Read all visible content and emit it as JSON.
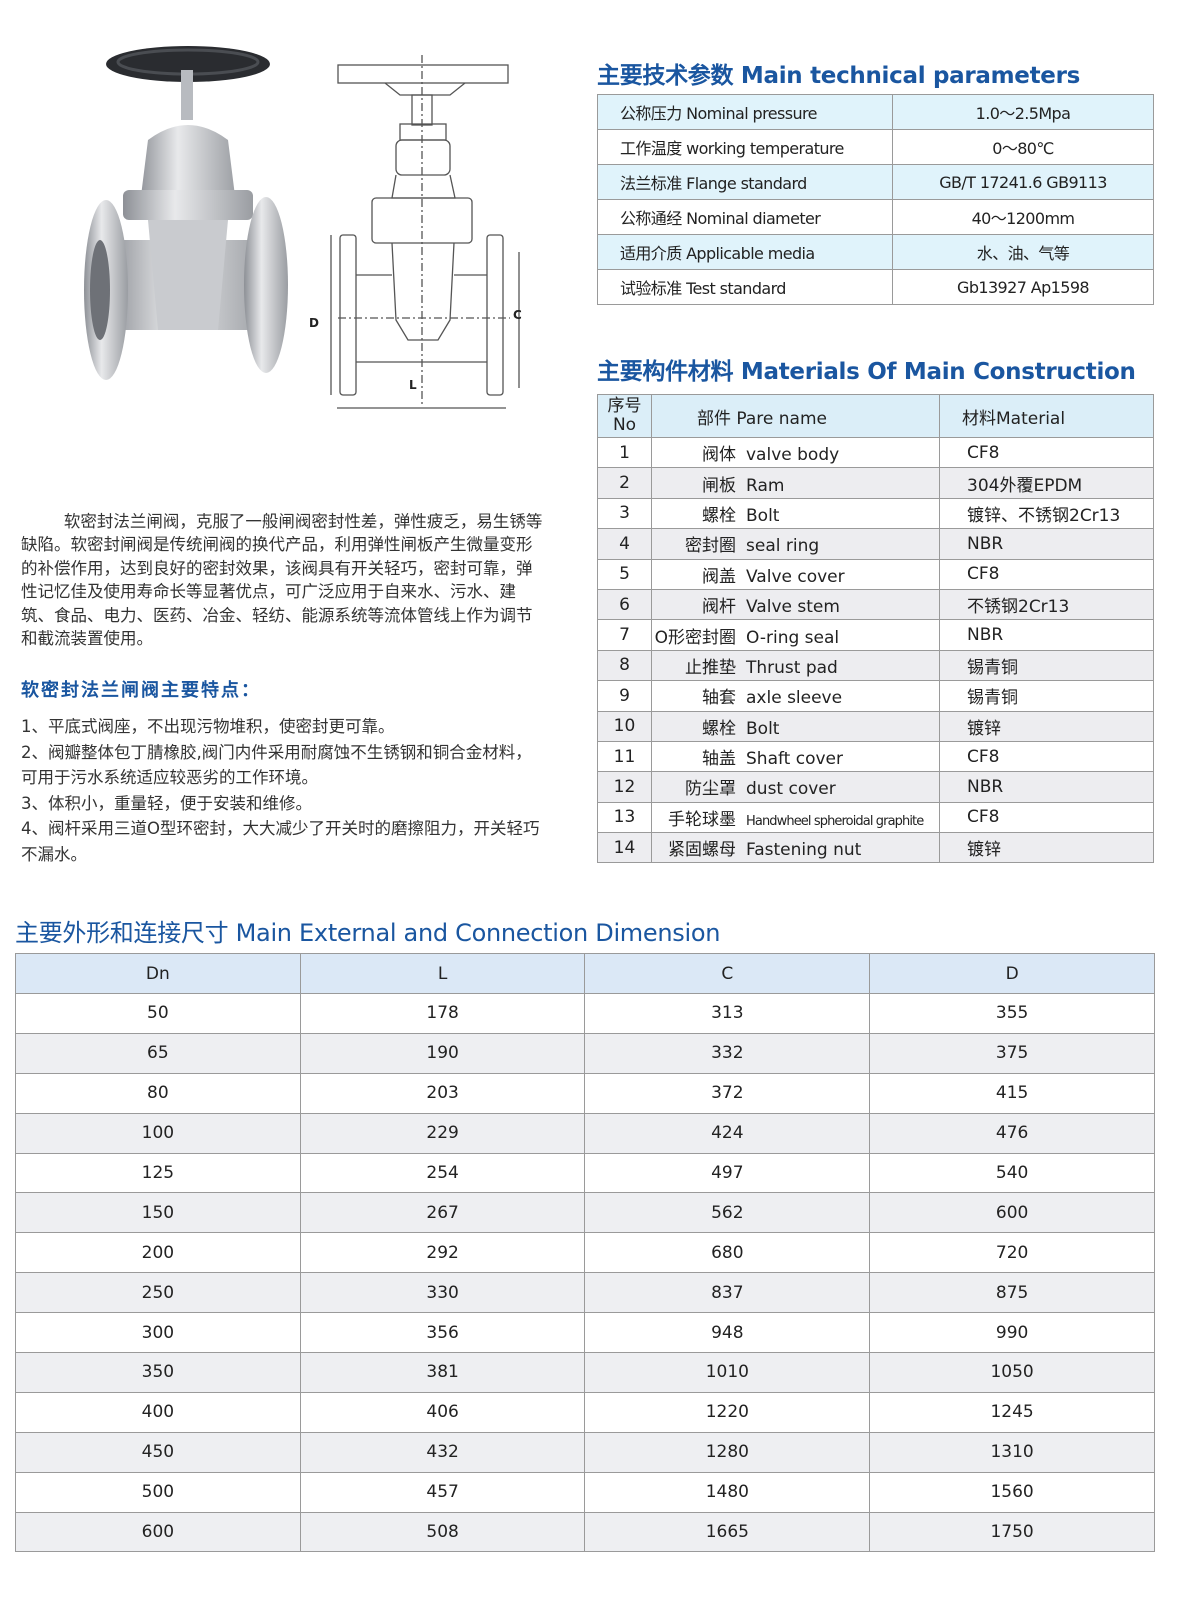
{
  "technical": {
    "title": "主要技术参数 Main technical parameters",
    "rows": [
      {
        "label": "公称压力 Nominal pressure",
        "value": "1.0～2.5Mpa"
      },
      {
        "label": "工作温度 working temperature",
        "value": "0～80℃"
      },
      {
        "label": "法兰标准 Flange standard",
        "value": "GB/T 17241.6 GB9113"
      },
      {
        "label": "公称通经 Nominal diameter",
        "value": "40～1200mm"
      },
      {
        "label": "适用介质 Applicable media",
        "value": "水、油、气等"
      },
      {
        "label": "试验标准 Test standard",
        "value": "Gb13927 Ap1598"
      }
    ]
  },
  "materials": {
    "title": "主要构件材料 Materials Of Main Construction",
    "headers": {
      "no_cn": "序号",
      "no_en": "No",
      "part": "部件 Pare name",
      "material": "材料Material"
    },
    "rows": [
      {
        "no": "1",
        "cn": "阀体",
        "en": "valve body",
        "material": "CF8"
      },
      {
        "no": "2",
        "cn": "闸板",
        "en": "Ram",
        "material": "304外覆EPDM"
      },
      {
        "no": "3",
        "cn": "螺栓",
        "en": "Bolt",
        "material": "镀锌、不锈钢2Cr13"
      },
      {
        "no": "4",
        "cn": "密封圈",
        "en": "seal ring",
        "material": "NBR"
      },
      {
        "no": "5",
        "cn": "阀盖",
        "en": "Valve cover",
        "material": "CF8"
      },
      {
        "no": "6",
        "cn": "阀杆",
        "en": "Valve stem",
        "material": "不锈钢2Cr13"
      },
      {
        "no": "7",
        "cn": "O形密封圈",
        "en": "O-ring seal",
        "material": "NBR"
      },
      {
        "no": "8",
        "cn": "止推垫",
        "en": "Thrust pad",
        "material": "锡青铜"
      },
      {
        "no": "9",
        "cn": "轴套",
        "en": "axle sleeve",
        "material": "锡青铜"
      },
      {
        "no": "10",
        "cn": "螺栓",
        "en": "Bolt",
        "material": "镀锌"
      },
      {
        "no": "11",
        "cn": "轴盖",
        "en": "Shaft cover",
        "material": "CF8"
      },
      {
        "no": "12",
        "cn": "防尘罩",
        "en": "dust cover",
        "material": "NBR"
      },
      {
        "no": "13",
        "cn": "手轮球墨",
        "en": "Handwheel spheroidal graphite",
        "material": "CF8"
      },
      {
        "no": "14",
        "cn": "紧固螺母",
        "en": "Fastening nut",
        "material": "镀锌"
      }
    ]
  },
  "drawing": {
    "label_d": "D",
    "label_c": "C",
    "label_l": "L"
  },
  "intro": "软密封法兰闸阀，克服了一般闸阀密封性差，弹性疲乏，易生锈等缺陷。软密封闸阀是传统闸阀的换代产品，利用弹性闸板产生微量变形的补偿作用，达到良好的密封效果，该阀具有开关轻巧，密封可靠，弹性记忆佳及使用寿命长等显著优点，可广泛应用于自来水、污水、建筑、食品、电力、医药、冶金、轻纺、能源系统等流体管线上作为调节和截流装置使用。",
  "features": {
    "title": "软密封法兰闸阀主要特点：",
    "items": [
      "1、平底式阀座，不出现污物堆积，使密封更可靠。",
      "2、阀瓣整体包丁腈橡胶,阀门内件采用耐腐蚀不生锈钢和铜合金材料，可用于污水系统适应较恶劣的工作环境。",
      "3、体积小，重量轻，便于安装和维修。",
      "4、阀杆采用三道O型环密封，大大减少了开关时的磨擦阻力，开关轻巧不漏水。"
    ]
  },
  "dimensions": {
    "title": "主要外形和连接尺寸 Main External and Connection Dimension",
    "headers": [
      "Dn",
      "L",
      "C",
      "D"
    ],
    "rows": [
      [
        "50",
        "178",
        "313",
        "355"
      ],
      [
        "65",
        "190",
        "332",
        "375"
      ],
      [
        "80",
        "203",
        "372",
        "415"
      ],
      [
        "100",
        "229",
        "424",
        "476"
      ],
      [
        "125",
        "254",
        "497",
        "540"
      ],
      [
        "150",
        "267",
        "562",
        "600"
      ],
      [
        "200",
        "292",
        "680",
        "720"
      ],
      [
        "250",
        "330",
        "837",
        "875"
      ],
      [
        "300",
        "356",
        "948",
        "990"
      ],
      [
        "350",
        "381",
        "1010",
        "1050"
      ],
      [
        "400",
        "406",
        "1220",
        "1245"
      ],
      [
        "450",
        "432",
        "1280",
        "1310"
      ],
      [
        "500",
        "457",
        "1480",
        "1560"
      ],
      [
        "600",
        "508",
        "1665",
        "1750"
      ]
    ]
  },
  "colors": {
    "title_blue": "#1a56a0",
    "header_blue": "#dbeef8",
    "row_gray": "#eeeff2"
  }
}
